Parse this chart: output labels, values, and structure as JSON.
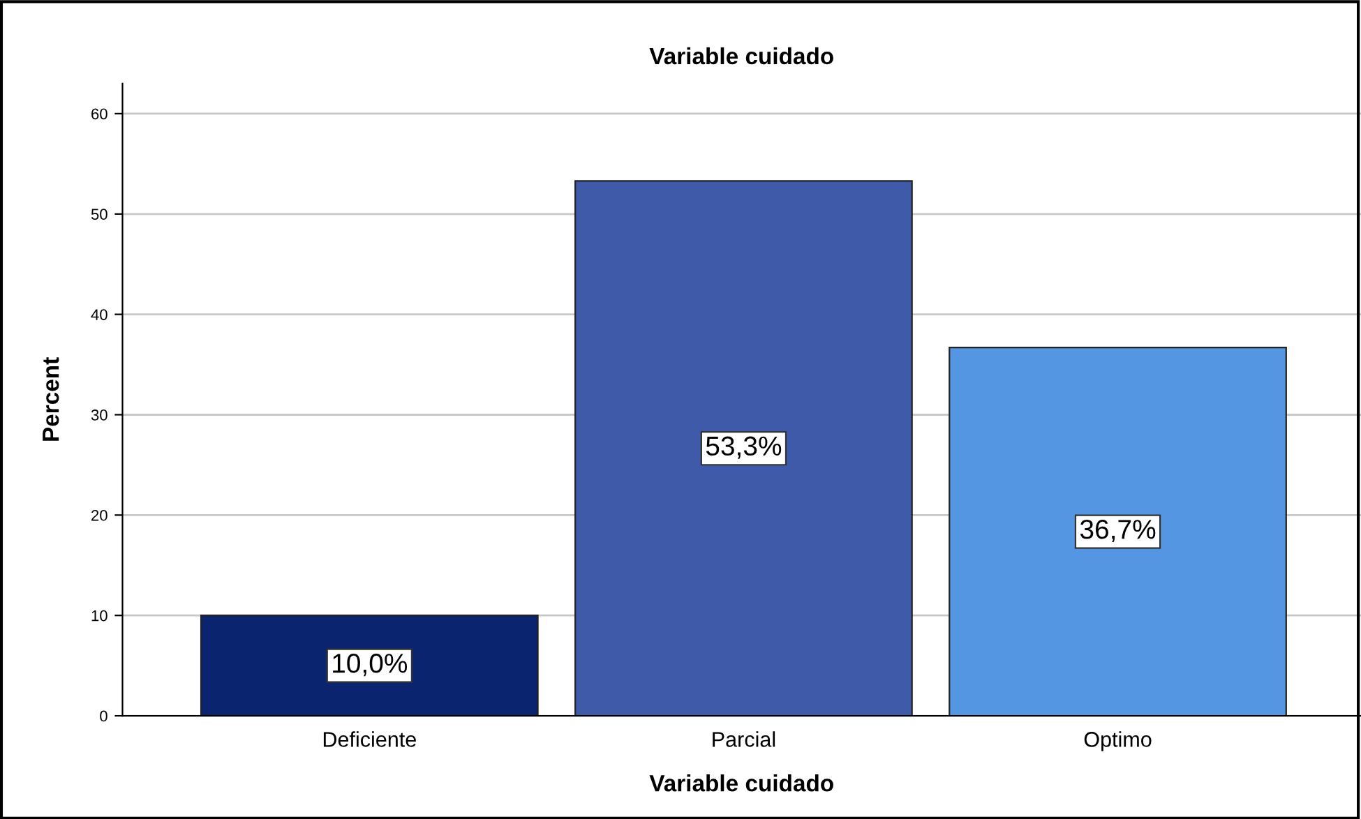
{
  "chart_data": {
    "type": "bar",
    "title": "Variable cuidado",
    "xlabel": "Variable cuidado",
    "ylabel": "Percent",
    "categories": [
      "Deficiente",
      "Parcial",
      "Optimo"
    ],
    "values": [
      10.0,
      53.3,
      36.7
    ],
    "colors": [
      "#0a2470",
      "#3f5aa8",
      "#5596e3"
    ],
    "value_labels": [
      "10,0%",
      "53,3%",
      "36,7%"
    ],
    "ylim": [
      0,
      63
    ],
    "yticks": [
      0,
      10,
      20,
      30,
      40,
      50,
      60
    ],
    "grid": "y"
  }
}
